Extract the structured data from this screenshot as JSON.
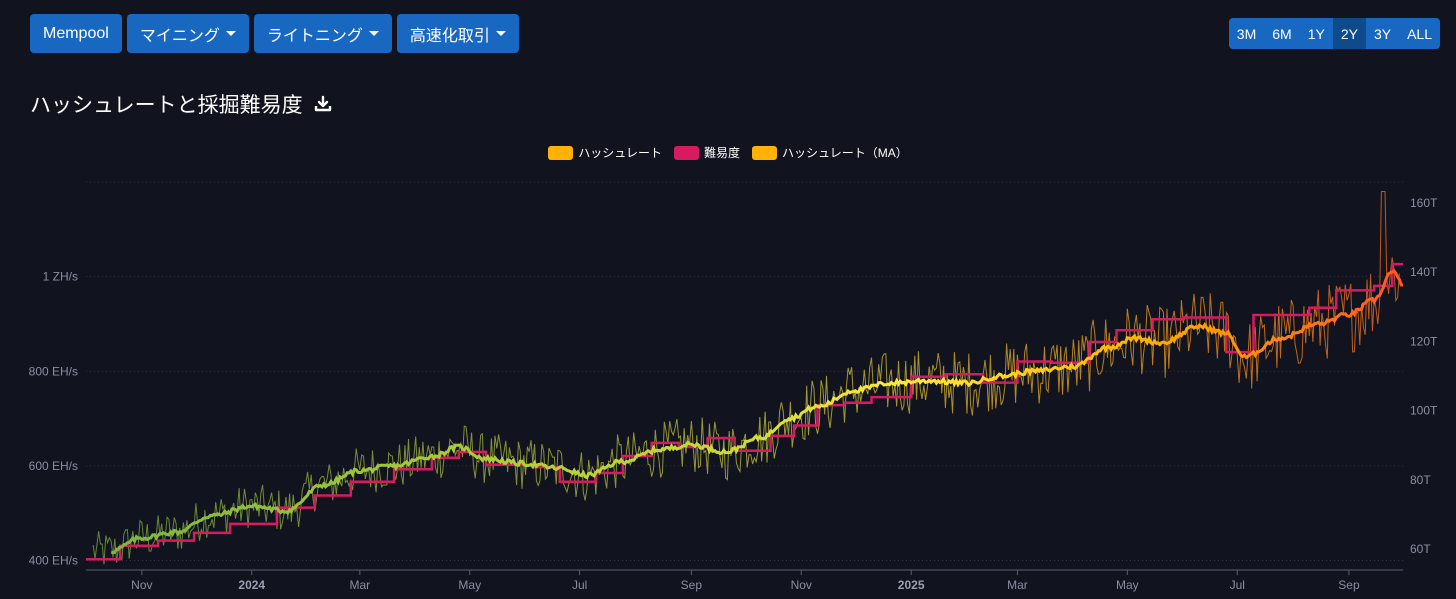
{
  "nav": {
    "buttons": [
      {
        "label": "Mempool",
        "dropdown": false
      },
      {
        "label": "マイニング",
        "dropdown": true
      },
      {
        "label": "ライトニング",
        "dropdown": true
      },
      {
        "label": "高速化取引",
        "dropdown": true
      }
    ]
  },
  "range": {
    "options": [
      "3M",
      "6M",
      "1Y",
      "2Y",
      "3Y",
      "ALL"
    ],
    "selected": "2Y"
  },
  "chart_title": "ハッシュレートと採掘難易度",
  "download_icon": "download-icon",
  "colors": {
    "background": "#11131f",
    "button": "#1868c2",
    "button_active": "#0f4a8a",
    "hashrate": "#ffb300",
    "difficulty": "#d81b60",
    "ma": "#ffb300",
    "ma_start": "#8bc34a",
    "ma_end": "#ff5722"
  },
  "chart_data": {
    "type": "line",
    "title": "ハッシュレートと採掘難易度",
    "legend": [
      {
        "name": "ハッシュレート",
        "color": "#ffb300"
      },
      {
        "name": "難易度",
        "color": "#d81b60"
      },
      {
        "name": "ハッシュレート（MA）",
        "color": "#ffb300"
      }
    ],
    "legend_position": "top-center",
    "x_range": [
      "2023-10-01",
      "2025-10-01"
    ],
    "x_ticks": [
      {
        "label": "Nov",
        "date": "2023-11-01",
        "bold": false
      },
      {
        "label": "2024",
        "date": "2024-01-01",
        "bold": true
      },
      {
        "label": "Mar",
        "date": "2024-03-01",
        "bold": false
      },
      {
        "label": "May",
        "date": "2024-05-01",
        "bold": false
      },
      {
        "label": "Jul",
        "date": "2024-07-01",
        "bold": false
      },
      {
        "label": "Sep",
        "date": "2024-09-01",
        "bold": false
      },
      {
        "label": "Nov",
        "date": "2024-11-01",
        "bold": false
      },
      {
        "label": "2025",
        "date": "2025-01-01",
        "bold": true
      },
      {
        "label": "Mar",
        "date": "2025-03-01",
        "bold": false
      },
      {
        "label": "May",
        "date": "2025-05-01",
        "bold": false
      },
      {
        "label": "Jul",
        "date": "2025-07-01",
        "bold": false
      },
      {
        "label": "Sep",
        "date": "2025-09-01",
        "bold": false
      }
    ],
    "y_left": {
      "unit": "EH/s",
      "range": [
        380,
        1200
      ],
      "ticks": [
        {
          "value": 400,
          "label": "400 EH/s"
        },
        {
          "value": 600,
          "label": "600 EH/s"
        },
        {
          "value": 800,
          "label": "800 EH/s"
        },
        {
          "value": 1000,
          "label": "1 ZH/s"
        }
      ]
    },
    "y_right": {
      "unit": "T",
      "range": [
        54,
        166
      ],
      "ticks": [
        {
          "value": 60,
          "label": "60T"
        },
        {
          "value": 80,
          "label": "80T"
        },
        {
          "value": 100,
          "label": "100T"
        },
        {
          "value": 120,
          "label": "120T"
        },
        {
          "value": 140,
          "label": "140T"
        },
        {
          "value": 160,
          "label": "160T"
        }
      ]
    },
    "grid": true,
    "hashrate_ma_eh": [
      [
        "2023-10-15",
        420
      ],
      [
        "2023-11-01",
        448
      ],
      [
        "2023-11-20",
        460
      ],
      [
        "2023-12-10",
        495
      ],
      [
        "2024-01-01",
        515
      ],
      [
        "2024-01-20",
        505
      ],
      [
        "2024-02-10",
        560
      ],
      [
        "2024-03-01",
        590
      ],
      [
        "2024-03-20",
        600
      ],
      [
        "2024-04-10",
        620
      ],
      [
        "2024-04-25",
        640
      ],
      [
        "2024-05-10",
        615
      ],
      [
        "2024-05-30",
        605
      ],
      [
        "2024-06-20",
        595
      ],
      [
        "2024-07-05",
        580
      ],
      [
        "2024-07-25",
        610
      ],
      [
        "2024-08-15",
        635
      ],
      [
        "2024-09-01",
        645
      ],
      [
        "2024-09-20",
        630
      ],
      [
        "2024-10-10",
        660
      ],
      [
        "2024-10-25",
        700
      ],
      [
        "2024-11-10",
        725
      ],
      [
        "2024-12-01",
        760
      ],
      [
        "2024-12-20",
        775
      ],
      [
        "2025-01-10",
        780
      ],
      [
        "2025-02-01",
        775
      ],
      [
        "2025-02-20",
        790
      ],
      [
        "2025-03-10",
        800
      ],
      [
        "2025-04-01",
        810
      ],
      [
        "2025-04-20",
        850
      ],
      [
        "2025-05-05",
        870
      ],
      [
        "2025-05-20",
        860
      ],
      [
        "2025-06-10",
        895
      ],
      [
        "2025-06-25",
        880
      ],
      [
        "2025-07-05",
        830
      ],
      [
        "2025-07-25",
        870
      ],
      [
        "2025-08-15",
        900
      ],
      [
        "2025-09-01",
        920
      ],
      [
        "2025-09-15",
        950
      ],
      [
        "2025-09-25",
        1010
      ],
      [
        "2025-10-01",
        985
      ]
    ],
    "difficulty_t": [
      [
        "2023-10-01",
        57.1
      ],
      [
        "2023-10-20",
        61.0
      ],
      [
        "2023-11-10",
        62.5
      ],
      [
        "2023-11-30",
        64.7
      ],
      [
        "2023-12-20",
        67.3
      ],
      [
        "2024-01-15",
        72.0
      ],
      [
        "2024-02-05",
        75.5
      ],
      [
        "2024-02-25",
        79.5
      ],
      [
        "2024-03-20",
        83.1
      ],
      [
        "2024-04-10",
        86.4
      ],
      [
        "2024-04-25",
        88.1
      ],
      [
        "2024-05-10",
        84.4
      ],
      [
        "2024-06-05",
        83.7
      ],
      [
        "2024-06-20",
        79.5
      ],
      [
        "2024-07-10",
        82.0
      ],
      [
        "2024-07-25",
        86.9
      ],
      [
        "2024-08-10",
        90.7
      ],
      [
        "2024-08-25",
        89.5
      ],
      [
        "2024-09-10",
        92.1
      ],
      [
        "2024-09-25",
        88.4
      ],
      [
        "2024-10-15",
        92.7
      ],
      [
        "2024-10-28",
        95.7
      ],
      [
        "2024-11-10",
        101.6
      ],
      [
        "2024-11-25",
        102.3
      ],
      [
        "2024-12-10",
        103.9
      ],
      [
        "2025-01-01",
        109.8
      ],
      [
        "2025-01-20",
        110.5
      ],
      [
        "2025-02-10",
        108.1
      ],
      [
        "2025-03-01",
        114.2
      ],
      [
        "2025-03-20",
        113.8
      ],
      [
        "2025-04-10",
        119.8
      ],
      [
        "2025-04-25",
        123.2
      ],
      [
        "2025-05-15",
        126.4
      ],
      [
        "2025-06-01",
        126.9
      ],
      [
        "2025-06-25",
        116.9
      ],
      [
        "2025-07-10",
        127.6
      ],
      [
        "2025-08-10",
        129.7
      ],
      [
        "2025-08-25",
        134.7
      ],
      [
        "2025-09-15",
        136.0
      ],
      [
        "2025-09-25",
        142.3
      ]
    ],
    "hashrate_daily_spread_eh": 70,
    "hashrate_peak_eh": 1180
  }
}
